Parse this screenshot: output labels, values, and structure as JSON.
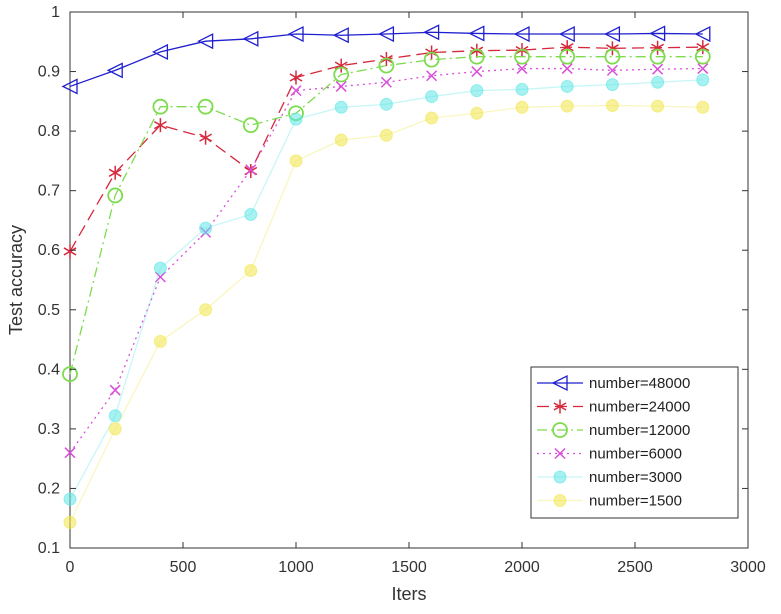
{
  "chart_data": {
    "type": "line",
    "xlabel": "Iters",
    "ylabel": "Test accuracy",
    "xlim": [
      0,
      3000
    ],
    "ylim": [
      0.1,
      1
    ],
    "xticks": [
      0,
      500,
      1000,
      1500,
      2000,
      2500,
      3000
    ],
    "xtick_labels": [
      "0",
      "500",
      "1000",
      "1500",
      "2000",
      "2500",
      "3000"
    ],
    "yticks": [
      0.1,
      0.2,
      0.3,
      0.4,
      0.5,
      0.6,
      0.7,
      0.8,
      0.9,
      1
    ],
    "ytick_labels": [
      "0.1",
      "0.2",
      "0.3",
      "0.4",
      "0.5",
      "0.6",
      "0.7",
      "0.8",
      "0.9",
      "1"
    ],
    "grid": false,
    "legend_position": "bottom-right",
    "x": [
      0,
      200,
      400,
      600,
      800,
      1000,
      1200,
      1400,
      1600,
      1800,
      2000,
      2200,
      2400,
      2600,
      2800
    ],
    "series": [
      {
        "name": "number=48000",
        "color": "#1f1fcf",
        "marker": "triangle-left",
        "line": "solid",
        "values": [
          0.875,
          0.902,
          0.933,
          0.951,
          0.955,
          0.963,
          0.961,
          0.963,
          0.966,
          0.964,
          0.963,
          0.963,
          0.963,
          0.964,
          0.963
        ]
      },
      {
        "name": "number=24000",
        "color": "#d6283c",
        "marker": "star",
        "line": "dashed",
        "values": [
          0.598,
          0.73,
          0.81,
          0.789,
          0.733,
          0.89,
          0.91,
          0.921,
          0.932,
          0.935,
          0.936,
          0.941,
          0.939,
          0.94,
          0.941
        ]
      },
      {
        "name": "number=12000",
        "color": "#7ddc4e",
        "marker": "circle",
        "line": "dashdot",
        "values": [
          0.392,
          0.692,
          0.841,
          0.841,
          0.81,
          0.83,
          0.895,
          0.91,
          0.92,
          0.925,
          0.925,
          0.925,
          0.925,
          0.925,
          0.925
        ]
      },
      {
        "name": "number=6000",
        "color": "#d94fd9",
        "marker": "x",
        "line": "dotted",
        "values": [
          0.26,
          0.365,
          0.555,
          0.63,
          0.735,
          0.868,
          0.875,
          0.882,
          0.893,
          0.9,
          0.905,
          0.905,
          0.902,
          0.904,
          0.905
        ]
      },
      {
        "name": "number=3000",
        "color": "#5ee6e6",
        "marker": "circle-filled",
        "line": "solid-faint",
        "values": [
          0.182,
          0.322,
          0.57,
          0.637,
          0.66,
          0.82,
          0.84,
          0.845,
          0.858,
          0.868,
          0.87,
          0.875,
          0.878,
          0.882,
          0.886
        ]
      },
      {
        "name": "number=1500",
        "color": "#f2e64a",
        "marker": "circle-filled",
        "line": "solid-faint",
        "values": [
          0.143,
          0.3,
          0.447,
          0.5,
          0.566,
          0.75,
          0.785,
          0.793,
          0.822,
          0.83,
          0.84,
          0.842,
          0.843,
          0.842,
          0.84
        ]
      }
    ]
  }
}
